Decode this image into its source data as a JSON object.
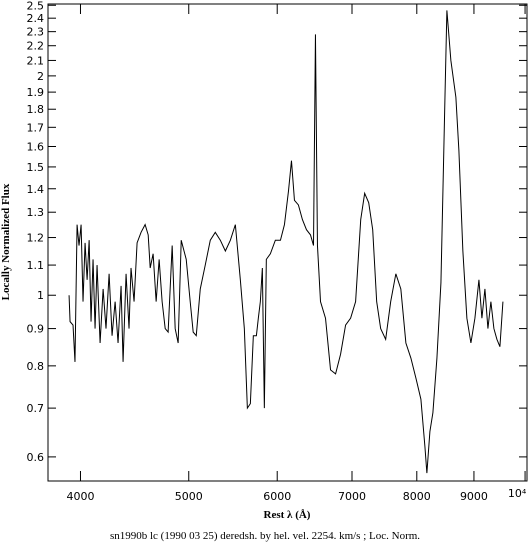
{
  "chart_data": {
    "type": "line",
    "xlabel": "Rest λ (Å)",
    "ylabel": "Locally Normalized Flux",
    "caption": "sn1990b lc (1990 03 25) deredsh. by hel. vel.  2254. km/s ;  Loc. Norm.",
    "xscale": "log",
    "yscale": "log",
    "color": "#000000",
    "xlim": [
      3741,
      10040
    ],
    "ylim": [
      0.556,
      2.51
    ],
    "xticks": [
      4000,
      5000,
      6000,
      7000,
      8000,
      9000,
      {
        "value": 10000,
        "label": "10⁴"
      }
    ],
    "yticks": [
      0.6,
      0.7,
      0.8,
      0.9,
      1,
      1.1,
      1.2,
      1.3,
      1.4,
      1.5,
      1.6,
      1.7,
      1.8,
      1.9,
      2,
      2.1,
      2.2,
      2.3,
      2.4,
      2.5
    ],
    "x": [
      3907,
      3915,
      3939,
      3955,
      3972,
      3988,
      4005,
      4021,
      4038,
      4055,
      4072,
      4088,
      4105,
      4122,
      4139,
      4165,
      4191,
      4216,
      4243,
      4269,
      4296,
      4322,
      4349,
      4367,
      4394,
      4421,
      4439,
      4467,
      4495,
      4532,
      4570,
      4599,
      4618,
      4646,
      4675,
      4704,
      4733,
      4763,
      4792,
      4832,
      4862,
      4892,
      4923,
      4974,
      5015,
      5046,
      5078,
      5120,
      5173,
      5227,
      5281,
      5336,
      5392,
      5448,
      5504,
      5561,
      5607,
      5642,
      5677,
      5712,
      5748,
      5771,
      5795,
      5819,
      5843,
      5867,
      5916,
      5977,
      6040,
      6090,
      6141,
      6179,
      6217,
      6268,
      6320,
      6373,
      6426,
      6466,
      6492,
      6519,
      6560,
      6628,
      6697,
      6767,
      6837,
      6908,
      6980,
      7052,
      7127,
      7185,
      7245,
      7305,
      7365,
      7426,
      7503,
      7581,
      7662,
      7741,
      7822,
      7903,
      7985,
      8068,
      8135,
      8168,
      8219,
      8270,
      8339,
      8408,
      8477,
      8512,
      8582,
      8671,
      8725,
      8797,
      8870,
      8944,
      9018,
      9093,
      9149,
      9206,
      9263,
      9320,
      9378,
      9436,
      9495,
      9554
    ],
    "values": [
      1.0,
      0.92,
      0.91,
      0.81,
      1.25,
      1.17,
      1.25,
      0.98,
      1.18,
      1.05,
      1.19,
      0.92,
      1.12,
      0.9,
      1.1,
      0.86,
      1.02,
      0.9,
      1.07,
      0.88,
      0.98,
      0.86,
      1.03,
      0.81,
      1.07,
      0.9,
      1.09,
      0.98,
      1.18,
      1.22,
      1.25,
      1.21,
      1.09,
      1.14,
      0.98,
      1.12,
      0.98,
      0.9,
      0.89,
      1.17,
      0.9,
      0.86,
      1.19,
      1.12,
      0.98,
      0.89,
      0.88,
      1.02,
      1.1,
      1.19,
      1.22,
      1.19,
      1.15,
      1.19,
      1.25,
      1.05,
      0.9,
      0.7,
      0.71,
      0.88,
      0.88,
      0.93,
      0.98,
      1.09,
      0.7,
      1.12,
      1.14,
      1.19,
      1.19,
      1.25,
      1.39,
      1.53,
      1.35,
      1.33,
      1.27,
      1.23,
      1.21,
      1.17,
      2.28,
      1.17,
      0.98,
      0.93,
      0.79,
      0.78,
      0.83,
      0.91,
      0.93,
      0.98,
      1.27,
      1.38,
      1.34,
      1.23,
      0.98,
      0.9,
      0.87,
      0.98,
      1.07,
      1.02,
      0.86,
      0.82,
      0.77,
      0.72,
      0.62,
      0.57,
      0.65,
      0.69,
      0.82,
      1.04,
      1.85,
      2.46,
      2.1,
      1.87,
      1.58,
      1.15,
      0.93,
      0.86,
      0.93,
      1.05,
      0.93,
      1.02,
      0.9,
      0.98,
      0.9,
      0.87,
      0.85,
      0.98
    ]
  }
}
